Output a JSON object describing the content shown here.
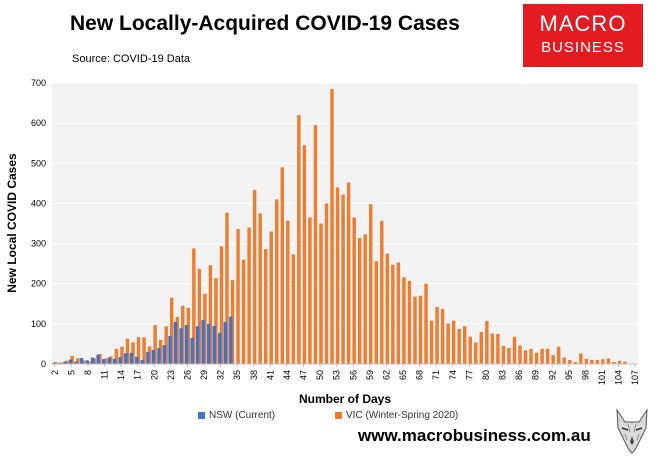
{
  "header": {
    "title": "New Locally-Acquired COVID-19 Cases",
    "source": "Source: COVID-19 Data"
  },
  "brand": {
    "line1": "MACRO",
    "line2": "BUSINESS",
    "url": "www.macrobusiness.com.au"
  },
  "colors": {
    "nsw": "#4472c4",
    "vic": "#ed7d31",
    "plot_bg": "#f2f2f2",
    "brand_red": "#e31b23"
  },
  "chart_data": {
    "type": "bar",
    "title": "New Locally-Acquired COVID-19 Cases",
    "xlabel": "Number of Days",
    "ylabel": "New Local COVID Cases",
    "ylim": [
      0,
      700
    ],
    "yticks": [
      0,
      100,
      200,
      300,
      400,
      500,
      600,
      700
    ],
    "x_start": 2,
    "x_end": 107,
    "xticks": [
      2,
      5,
      8,
      11,
      14,
      17,
      20,
      23,
      26,
      29,
      32,
      35,
      38,
      41,
      44,
      47,
      50,
      53,
      56,
      59,
      62,
      65,
      68,
      71,
      74,
      77,
      80,
      83,
      86,
      89,
      92,
      95,
      98,
      101,
      104,
      107
    ],
    "legend_position": "bottom",
    "series": [
      {
        "name": "NSW (Current)",
        "start_day": 2,
        "values": [
          3,
          2,
          6,
          11,
          6,
          15,
          9,
          16,
          23,
          12,
          16,
          13,
          17,
          27,
          28,
          18,
          10,
          30,
          35,
          40,
          47,
          70,
          105,
          89,
          97,
          65,
          94,
          110,
          100,
          95,
          78,
          105,
          118
        ]
      },
      {
        "name": "VIC (Winter-Spring 2020)",
        "start_day": 2,
        "values": [
          5,
          4,
          8,
          20,
          14,
          9,
          7,
          14,
          25,
          14,
          19,
          38,
          43,
          63,
          54,
          67,
          66,
          44,
          97,
          60,
          94,
          165,
          117,
          145,
          140,
          288,
          237,
          175,
          246,
          214,
          293,
          377,
          209,
          336,
          260,
          340,
          434,
          375,
          286,
          330,
          410,
          490,
          357,
          273,
          620,
          545,
          365,
          595,
          350,
          400,
          685,
          440,
          422,
          452,
          365,
          314,
          323,
          398,
          256,
          357,
          275,
          247,
          253,
          216,
          207,
          168,
          170,
          200,
          108,
          142,
          137,
          101,
          108,
          87,
          94,
          68,
          54,
          80,
          107,
          76,
          75,
          45,
          40,
          68,
          46,
          34,
          38,
          28,
          38,
          38,
          22,
          43,
          16,
          10,
          5,
          26,
          13,
          10,
          10,
          12,
          14,
          5,
          8,
          6
        ]
      }
    ]
  }
}
